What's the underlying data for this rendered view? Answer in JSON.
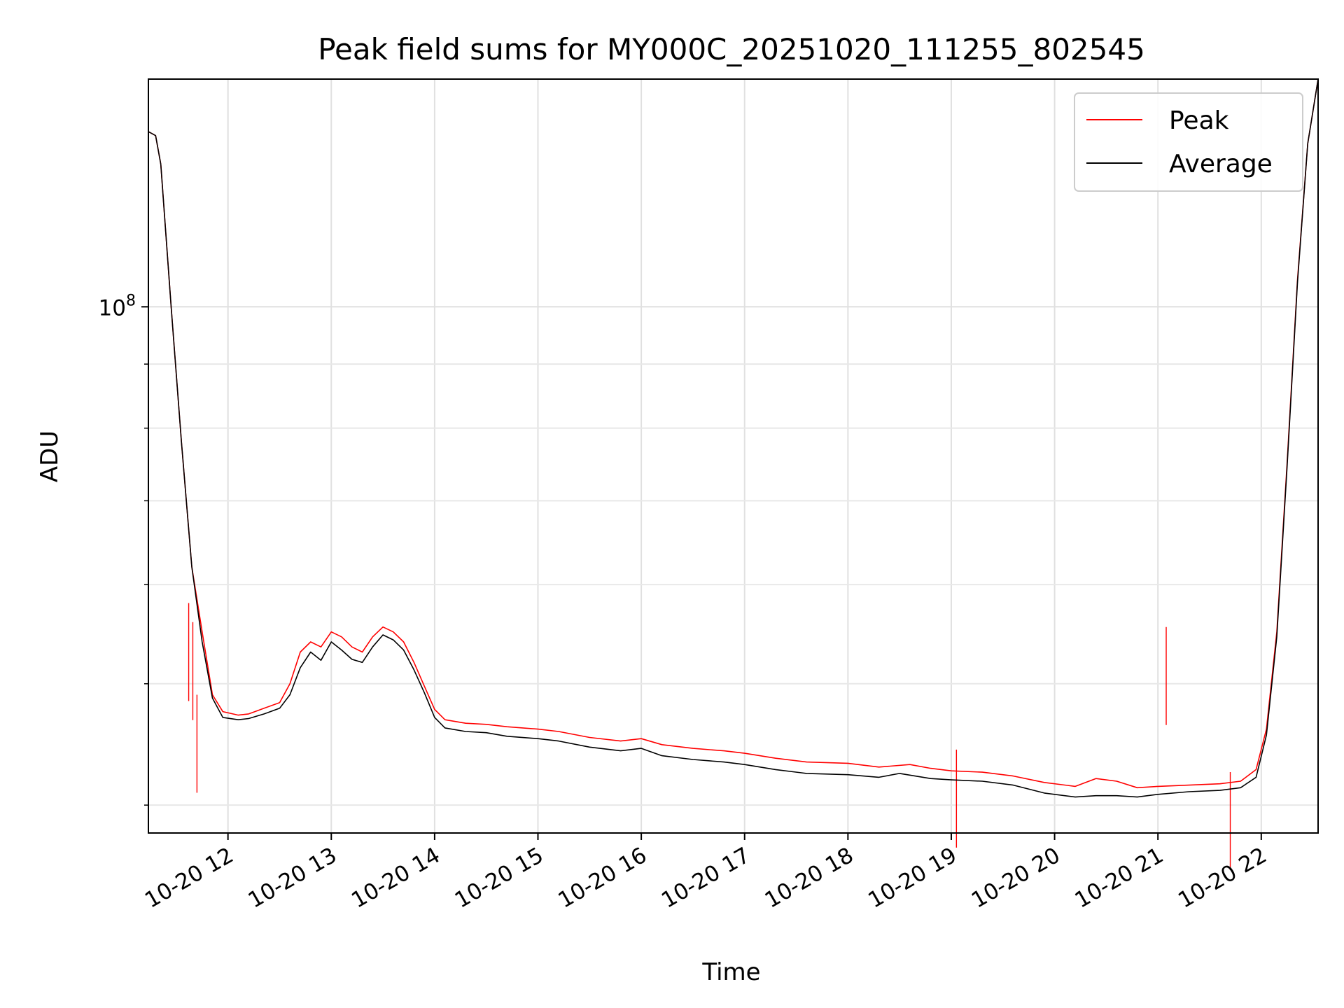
{
  "chart_data": {
    "type": "line",
    "title": "Peak field sums for MY000C_20251020_111255_802545",
    "xlabel": "Time",
    "ylabel": "ADU",
    "x_ticks": [
      "10-20 12",
      "10-20 13",
      "10-20 14",
      "10-20 15",
      "10-20 16",
      "10-20 17",
      "10-20 18",
      "10-20 19",
      "10-20 20",
      "10-20 21",
      "10-20 22"
    ],
    "x_tick_hours": [
      12,
      13,
      14,
      15,
      16,
      17,
      18,
      19,
      20,
      21,
      22
    ],
    "xlim_hours": [
      11.23,
      22.55
    ],
    "y_scale": "log",
    "ylim": [
      38000000,
      152000000
    ],
    "y_major_ticks": [
      {
        "value": 100000000,
        "base": "10",
        "exp": "8"
      }
    ],
    "y_minor_ticks": [
      40000000,
      50000000,
      60000000,
      70000000,
      80000000,
      90000000
    ],
    "grid": true,
    "legend_position": "top-right",
    "series": [
      {
        "name": "Peak",
        "color": "#ff0000",
        "points": [
          [
            11.23,
            138000000
          ],
          [
            11.3,
            137000000
          ],
          [
            11.35,
            130000000
          ],
          [
            11.45,
            100000000
          ],
          [
            11.55,
            78000000
          ],
          [
            11.65,
            62000000
          ],
          [
            11.75,
            55000000
          ],
          [
            11.85,
            49000000
          ],
          [
            11.95,
            47500000
          ],
          [
            12.1,
            47200000
          ],
          [
            12.2,
            47300000
          ],
          [
            12.35,
            47800000
          ],
          [
            12.5,
            48300000
          ],
          [
            12.6,
            50000000
          ],
          [
            12.7,
            53000000
          ],
          [
            12.8,
            54000000
          ],
          [
            12.9,
            53500000
          ],
          [
            13.0,
            55000000
          ],
          [
            13.1,
            54500000
          ],
          [
            13.2,
            53500000
          ],
          [
            13.3,
            53000000
          ],
          [
            13.4,
            54500000
          ],
          [
            13.5,
            55500000
          ],
          [
            13.6,
            55000000
          ],
          [
            13.7,
            54000000
          ],
          [
            13.8,
            52000000
          ],
          [
            13.9,
            49800000
          ],
          [
            14.0,
            47700000
          ],
          [
            14.1,
            46800000
          ],
          [
            14.3,
            46500000
          ],
          [
            14.5,
            46400000
          ],
          [
            14.7,
            46200000
          ],
          [
            15.0,
            46000000
          ],
          [
            15.2,
            45800000
          ],
          [
            15.5,
            45300000
          ],
          [
            15.8,
            45000000
          ],
          [
            16.0,
            45200000
          ],
          [
            16.2,
            44700000
          ],
          [
            16.5,
            44400000
          ],
          [
            16.8,
            44200000
          ],
          [
            17.0,
            44000000
          ],
          [
            17.3,
            43600000
          ],
          [
            17.6,
            43300000
          ],
          [
            18.0,
            43200000
          ],
          [
            18.3,
            42900000
          ],
          [
            18.6,
            43100000
          ],
          [
            18.8,
            42800000
          ],
          [
            19.0,
            42600000
          ],
          [
            19.3,
            42500000
          ],
          [
            19.6,
            42200000
          ],
          [
            19.9,
            41700000
          ],
          [
            20.2,
            41400000
          ],
          [
            20.4,
            42000000
          ],
          [
            20.6,
            41800000
          ],
          [
            20.8,
            41300000
          ],
          [
            21.0,
            41400000
          ],
          [
            21.3,
            41500000
          ],
          [
            21.6,
            41600000
          ],
          [
            21.8,
            41800000
          ],
          [
            21.95,
            42700000
          ],
          [
            22.05,
            46000000
          ],
          [
            22.15,
            55000000
          ],
          [
            22.25,
            75000000
          ],
          [
            22.35,
            105000000
          ],
          [
            22.45,
            135000000
          ],
          [
            22.55,
            152000000
          ]
        ],
        "spikes": [
          [
            11.62,
            58000000
          ],
          [
            11.66,
            56000000
          ],
          [
            11.7,
            49000000
          ],
          [
            19.05,
            44300000
          ],
          [
            21.08,
            55500000
          ],
          [
            21.7,
            42500000
          ]
        ]
      },
      {
        "name": "Average",
        "color": "#000000",
        "points": [
          [
            11.23,
            138000000
          ],
          [
            11.3,
            137000000
          ],
          [
            11.35,
            130000000
          ],
          [
            11.45,
            100000000
          ],
          [
            11.55,
            78000000
          ],
          [
            11.65,
            62000000
          ],
          [
            11.75,
            54000000
          ],
          [
            11.85,
            48700000
          ],
          [
            11.95,
            47000000
          ],
          [
            12.1,
            46800000
          ],
          [
            12.2,
            46900000
          ],
          [
            12.35,
            47300000
          ],
          [
            12.5,
            47800000
          ],
          [
            12.6,
            49000000
          ],
          [
            12.7,
            51500000
          ],
          [
            12.8,
            53000000
          ],
          [
            12.9,
            52200000
          ],
          [
            13.0,
            54000000
          ],
          [
            13.1,
            53200000
          ],
          [
            13.2,
            52300000
          ],
          [
            13.3,
            52000000
          ],
          [
            13.4,
            53500000
          ],
          [
            13.5,
            54700000
          ],
          [
            13.6,
            54200000
          ],
          [
            13.7,
            53200000
          ],
          [
            13.8,
            51300000
          ],
          [
            13.9,
            49200000
          ],
          [
            14.0,
            47000000
          ],
          [
            14.1,
            46100000
          ],
          [
            14.3,
            45800000
          ],
          [
            14.5,
            45700000
          ],
          [
            14.7,
            45400000
          ],
          [
            15.0,
            45200000
          ],
          [
            15.2,
            45000000
          ],
          [
            15.5,
            44500000
          ],
          [
            15.8,
            44200000
          ],
          [
            16.0,
            44400000
          ],
          [
            16.2,
            43800000
          ],
          [
            16.5,
            43500000
          ],
          [
            16.8,
            43300000
          ],
          [
            17.0,
            43100000
          ],
          [
            17.3,
            42700000
          ],
          [
            17.6,
            42400000
          ],
          [
            18.0,
            42300000
          ],
          [
            18.3,
            42100000
          ],
          [
            18.5,
            42400000
          ],
          [
            18.8,
            42000000
          ],
          [
            19.0,
            41900000
          ],
          [
            19.3,
            41800000
          ],
          [
            19.6,
            41500000
          ],
          [
            19.9,
            40900000
          ],
          [
            20.2,
            40600000
          ],
          [
            20.4,
            40700000
          ],
          [
            20.6,
            40700000
          ],
          [
            20.8,
            40600000
          ],
          [
            21.0,
            40800000
          ],
          [
            21.3,
            41000000
          ],
          [
            21.6,
            41100000
          ],
          [
            21.8,
            41300000
          ],
          [
            21.95,
            42100000
          ],
          [
            22.05,
            45500000
          ],
          [
            22.15,
            54500000
          ],
          [
            22.25,
            74500000
          ],
          [
            22.35,
            104500000
          ],
          [
            22.45,
            135000000
          ],
          [
            22.55,
            152000000
          ]
        ]
      }
    ]
  }
}
